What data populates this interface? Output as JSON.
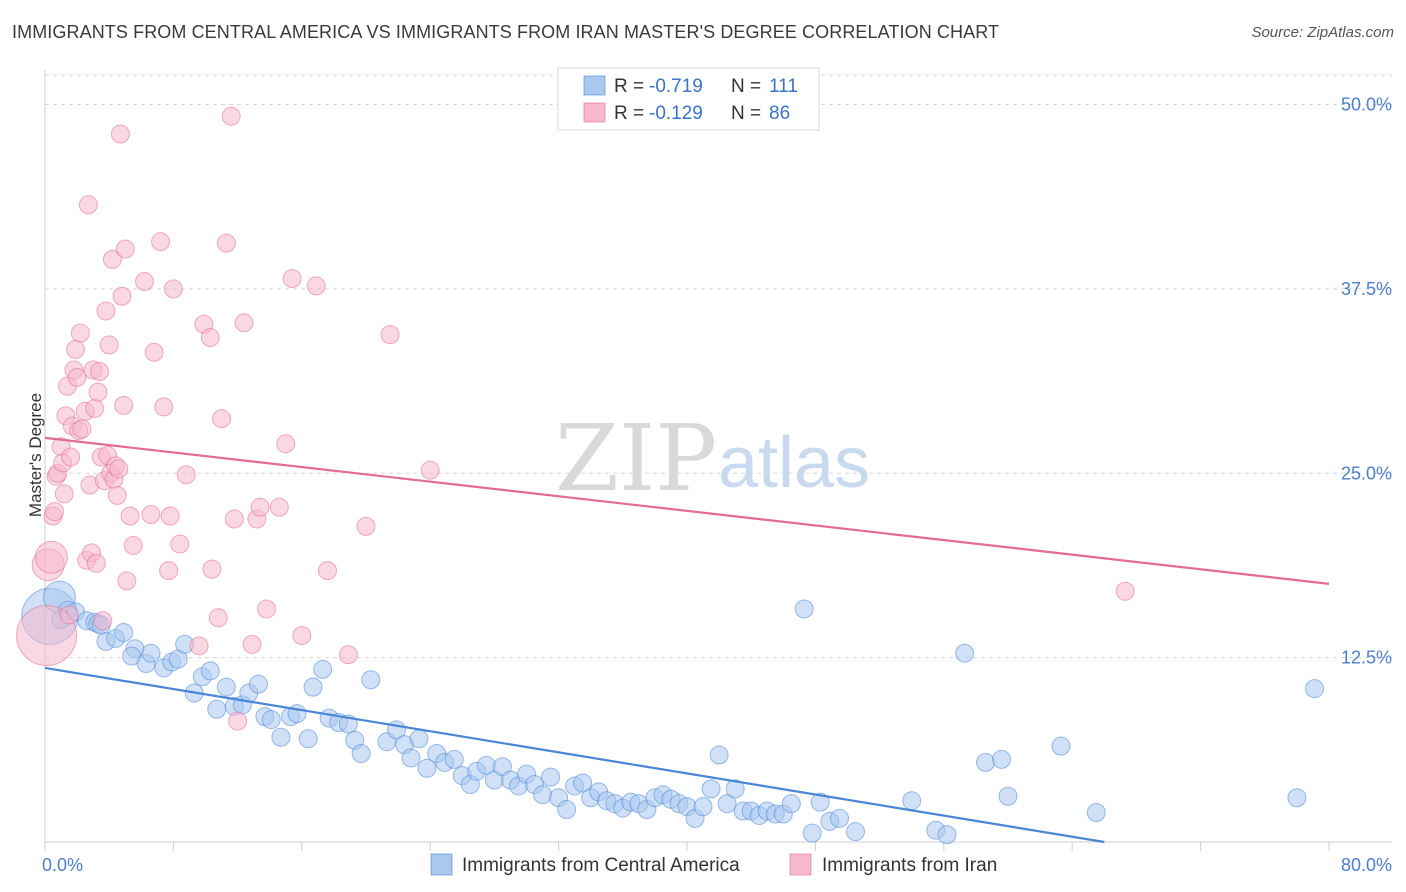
{
  "title": "IMMIGRANTS FROM CENTRAL AMERICA VS IMMIGRANTS FROM IRAN MASTER'S DEGREE CORRELATION CHART",
  "source": "Source: ZipAtlas.com",
  "watermark": {
    "zip": "ZIP",
    "atlas": "atlas"
  },
  "colors": {
    "blue": "#4a86d8",
    "blue_fill": "#a9c8f0",
    "pink": "#e36b96",
    "pink_fill": "#f5b8cc",
    "tick": "#4a7fcf",
    "grid": "#d8d8d8"
  },
  "legend": {
    "entries": [
      {
        "r_label": "R = ",
        "r_value": "-0.719",
        "n_label": "N = ",
        "n_value": "111"
      },
      {
        "r_label": "R = ",
        "r_value": "-0.129",
        "n_label": "N = ",
        "n_value": "86"
      }
    ]
  },
  "chart_data": {
    "type": "scatter",
    "xlabel": "",
    "ylabel": "Master's Degree",
    "xlim": [
      0,
      80
    ],
    "ylim": [
      0,
      52
    ],
    "x_tick_labels": [
      {
        "value": 0,
        "label": "0.0%"
      },
      {
        "value": 80,
        "label": "80.0%"
      }
    ],
    "y_tick_labels": [
      {
        "value": 12.5,
        "label": "12.5%"
      },
      {
        "value": 25.0,
        "label": "25.0%"
      },
      {
        "value": 37.5,
        "label": "37.5%"
      },
      {
        "value": 50.0,
        "label": "50.0%"
      }
    ],
    "legend_position": "top-center",
    "series": [
      {
        "name": "Immigrants from Central America",
        "color": "#4a86d8",
        "trend": {
          "x": [
            0,
            66
          ],
          "y": [
            11.8,
            0
          ]
        },
        "points": [
          [
            0.3,
            15.3
          ],
          [
            0.9,
            16.6
          ],
          [
            1.4,
            15.7
          ],
          [
            1.9,
            15.6
          ],
          [
            2.6,
            15.0
          ],
          [
            3.1,
            14.9
          ],
          [
            3.3,
            14.8
          ],
          [
            3.8,
            13.6
          ],
          [
            4.4,
            13.8
          ],
          [
            4.9,
            14.2
          ],
          [
            5.6,
            13.1
          ],
          [
            5.4,
            12.6
          ],
          [
            6.3,
            12.1
          ],
          [
            6.6,
            12.8
          ],
          [
            7.4,
            11.8
          ],
          [
            7.9,
            12.2
          ],
          [
            8.3,
            12.4
          ],
          [
            8.7,
            13.4
          ],
          [
            9.3,
            10.1
          ],
          [
            9.8,
            11.2
          ],
          [
            10.3,
            11.6
          ],
          [
            10.7,
            9.0
          ],
          [
            11.3,
            10.5
          ],
          [
            11.8,
            9.2
          ],
          [
            12.3,
            9.3
          ],
          [
            12.7,
            10.1
          ],
          [
            13.3,
            10.7
          ],
          [
            13.7,
            8.5
          ],
          [
            14.1,
            8.3
          ],
          [
            14.7,
            7.1
          ],
          [
            15.3,
            8.5
          ],
          [
            15.7,
            8.7
          ],
          [
            16.4,
            7.0
          ],
          [
            16.7,
            10.5
          ],
          [
            17.3,
            11.7
          ],
          [
            17.7,
            8.4
          ],
          [
            18.3,
            8.1
          ],
          [
            18.9,
            8.0
          ],
          [
            19.3,
            6.9
          ],
          [
            19.7,
            6.0
          ],
          [
            20.3,
            11.0
          ],
          [
            21.3,
            6.8
          ],
          [
            21.9,
            7.6
          ],
          [
            22.4,
            6.6
          ],
          [
            22.8,
            5.7
          ],
          [
            23.3,
            7.0
          ],
          [
            23.8,
            5.0
          ],
          [
            24.4,
            6.0
          ],
          [
            24.9,
            5.4
          ],
          [
            25.5,
            5.6
          ],
          [
            26.0,
            4.5
          ],
          [
            26.5,
            3.9
          ],
          [
            26.9,
            4.8
          ],
          [
            27.5,
            5.2
          ],
          [
            28.0,
            4.2
          ],
          [
            28.5,
            5.1
          ],
          [
            29.0,
            4.2
          ],
          [
            29.5,
            3.8
          ],
          [
            30.0,
            4.6
          ],
          [
            30.5,
            3.9
          ],
          [
            31.0,
            3.2
          ],
          [
            31.5,
            4.4
          ],
          [
            32.0,
            3.0
          ],
          [
            32.5,
            2.2
          ],
          [
            33.0,
            3.8
          ],
          [
            33.5,
            4.0
          ],
          [
            34.0,
            3.0
          ],
          [
            34.5,
            3.4
          ],
          [
            35.0,
            2.8
          ],
          [
            35.5,
            2.6
          ],
          [
            36.0,
            2.3
          ],
          [
            36.5,
            2.7
          ],
          [
            37.0,
            2.6
          ],
          [
            37.5,
            2.2
          ],
          [
            38.0,
            3.0
          ],
          [
            38.5,
            3.2
          ],
          [
            39.0,
            2.9
          ],
          [
            39.5,
            2.6
          ],
          [
            40.0,
            2.4
          ],
          [
            40.5,
            1.6
          ],
          [
            41.0,
            2.4
          ],
          [
            41.5,
            3.6
          ],
          [
            42.0,
            5.9
          ],
          [
            42.5,
            2.6
          ],
          [
            43.0,
            3.6
          ],
          [
            43.5,
            2.1
          ],
          [
            44.0,
            2.1
          ],
          [
            44.5,
            1.8
          ],
          [
            45.0,
            2.1
          ],
          [
            45.5,
            1.9
          ],
          [
            46.0,
            1.9
          ],
          [
            46.5,
            2.6
          ],
          [
            47.3,
            15.8
          ],
          [
            47.8,
            0.6
          ],
          [
            48.3,
            2.7
          ],
          [
            48.9,
            1.4
          ],
          [
            49.5,
            1.6
          ],
          [
            50.5,
            0.7
          ],
          [
            54.0,
            2.8
          ],
          [
            55.5,
            0.8
          ],
          [
            56.2,
            0.5
          ],
          [
            57.3,
            12.8
          ],
          [
            58.6,
            5.4
          ],
          [
            59.6,
            5.6
          ],
          [
            60.0,
            3.1
          ],
          [
            63.3,
            6.5
          ],
          [
            65.5,
            2.0
          ],
          [
            78.0,
            3.0
          ],
          [
            79.1,
            10.4
          ],
          [
            1.0,
            15.1
          ],
          [
            3.5,
            14.7
          ]
        ],
        "sizes": {
          "0": 28,
          "1": 16
        }
      },
      {
        "name": "Immigrants from Iran",
        "color": "#e36b96",
        "trend": {
          "x": [
            0,
            80
          ],
          "y": [
            27.4,
            17.5
          ]
        },
        "points": [
          [
            0.1,
            14.0
          ],
          [
            0.2,
            18.8
          ],
          [
            0.4,
            19.3
          ],
          [
            0.5,
            22.1
          ],
          [
            0.6,
            22.4
          ],
          [
            0.7,
            24.8
          ],
          [
            0.8,
            25.0
          ],
          [
            1.0,
            26.8
          ],
          [
            1.1,
            25.7
          ],
          [
            1.2,
            23.6
          ],
          [
            1.3,
            28.9
          ],
          [
            1.4,
            30.9
          ],
          [
            1.5,
            15.4
          ],
          [
            1.6,
            26.1
          ],
          [
            1.7,
            28.2
          ],
          [
            1.8,
            32.0
          ],
          [
            1.9,
            33.4
          ],
          [
            2.0,
            31.5
          ],
          [
            2.1,
            27.9
          ],
          [
            2.2,
            34.5
          ],
          [
            2.3,
            28.0
          ],
          [
            2.5,
            29.2
          ],
          [
            2.6,
            19.1
          ],
          [
            2.7,
            43.2
          ],
          [
            2.8,
            24.2
          ],
          [
            2.9,
            19.6
          ],
          [
            3.0,
            32.0
          ],
          [
            3.1,
            29.4
          ],
          [
            3.2,
            18.9
          ],
          [
            3.3,
            30.5
          ],
          [
            3.4,
            31.9
          ],
          [
            3.5,
            26.1
          ],
          [
            3.6,
            15.0
          ],
          [
            3.7,
            24.5
          ],
          [
            3.8,
            36.0
          ],
          [
            3.9,
            26.2
          ],
          [
            4.0,
            33.7
          ],
          [
            4.1,
            25.0
          ],
          [
            4.2,
            39.5
          ],
          [
            4.3,
            24.6
          ],
          [
            4.4,
            25.5
          ],
          [
            4.5,
            23.5
          ],
          [
            4.6,
            25.3
          ],
          [
            4.7,
            48.0
          ],
          [
            4.8,
            37.0
          ],
          [
            4.9,
            29.6
          ],
          [
            5.0,
            40.2
          ],
          [
            5.1,
            17.7
          ],
          [
            5.3,
            22.1
          ],
          [
            5.5,
            20.1
          ],
          [
            6.2,
            38.0
          ],
          [
            6.6,
            22.2
          ],
          [
            6.8,
            33.2
          ],
          [
            7.2,
            40.7
          ],
          [
            7.4,
            29.5
          ],
          [
            7.7,
            18.4
          ],
          [
            7.8,
            22.1
          ],
          [
            8.0,
            37.5
          ],
          [
            8.4,
            20.2
          ],
          [
            8.8,
            24.9
          ],
          [
            9.6,
            13.3
          ],
          [
            9.9,
            35.1
          ],
          [
            10.3,
            34.2
          ],
          [
            10.4,
            18.5
          ],
          [
            10.8,
            15.2
          ],
          [
            11.0,
            28.7
          ],
          [
            11.3,
            40.6
          ],
          [
            11.6,
            49.2
          ],
          [
            11.8,
            21.9
          ],
          [
            12.0,
            8.2
          ],
          [
            12.4,
            35.2
          ],
          [
            12.9,
            13.4
          ],
          [
            13.2,
            21.9
          ],
          [
            13.4,
            22.7
          ],
          [
            13.8,
            15.8
          ],
          [
            14.6,
            22.7
          ],
          [
            15.0,
            27.0
          ],
          [
            15.4,
            38.2
          ],
          [
            16.0,
            14.0
          ],
          [
            16.9,
            37.7
          ],
          [
            17.6,
            18.4
          ],
          [
            18.9,
            12.7
          ],
          [
            20.0,
            21.4
          ],
          [
            21.5,
            34.4
          ],
          [
            24.0,
            25.2
          ],
          [
            67.3,
            17.0
          ]
        ],
        "sizes": {
          "0": 30,
          "1": 16,
          "2": 16
        }
      }
    ]
  },
  "bottom_legend": [
    {
      "label": "Immigrants from Central America"
    },
    {
      "label": "Immigrants from Iran"
    }
  ]
}
